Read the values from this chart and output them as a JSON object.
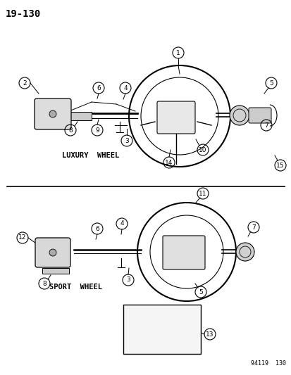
{
  "title": "19−130",
  "bg_color": "#ffffff",
  "line_color": "#000000",
  "page_label": "19-130",
  "watermark": "94119  130",
  "luxury_label": "LUXURY  WHEEL",
  "sport_label": "SPORT  WHEEL",
  "fig_width": 4.14,
  "fig_height": 5.33,
  "dpi": 100
}
